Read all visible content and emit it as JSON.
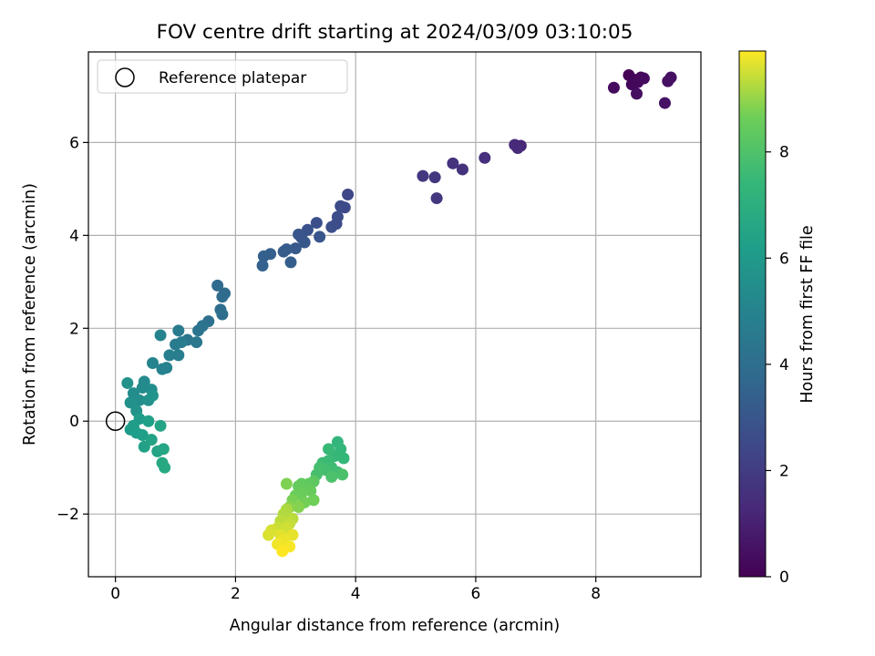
{
  "chart_data": {
    "type": "scatter",
    "title": "FOV centre drift starting at 2024/03/09 03:10:05",
    "xlabel": "Angular distance from reference (arcmin)",
    "ylabel": "Rotation from reference (arcmin)",
    "xlim": [
      -0.45,
      9.75
    ],
    "ylim": [
      -3.35,
      7.95
    ],
    "xticks": [
      0,
      2,
      4,
      6,
      8
    ],
    "yticks": [
      -2,
      0,
      2,
      4,
      6
    ],
    "grid": true,
    "legend": {
      "position": "top-left",
      "entries": [
        "Reference platepar"
      ]
    },
    "colorbar": {
      "label": "Hours from first FF file",
      "colormap": "viridis",
      "range": [
        0,
        9.9
      ],
      "ticks": [
        0,
        2,
        4,
        6,
        8
      ]
    },
    "reference_point": {
      "label": "Reference platepar",
      "x": 0,
      "y": 0
    },
    "point_format": [
      "x (arcmin)",
      "y (arcmin)",
      "hours"
    ],
    "points": [
      [
        8.55,
        7.45,
        0.05
      ],
      [
        8.65,
        7.35,
        0.1
      ],
      [
        8.75,
        7.4,
        0.15
      ],
      [
        8.6,
        7.25,
        0.2
      ],
      [
        8.7,
        7.3,
        0.25
      ],
      [
        8.8,
        7.38,
        0.3
      ],
      [
        8.3,
        7.18,
        0.35
      ],
      [
        8.68,
        7.05,
        0.4
      ],
      [
        9.25,
        7.4,
        0.45
      ],
      [
        9.2,
        7.32,
        0.5
      ],
      [
        9.15,
        6.85,
        0.55
      ],
      [
        6.75,
        5.93,
        1.2
      ],
      [
        6.7,
        5.88,
        1.3
      ],
      [
        6.65,
        5.95,
        1.35
      ],
      [
        6.15,
        5.67,
        1.5
      ],
      [
        5.78,
        5.42,
        1.6
      ],
      [
        5.62,
        5.55,
        1.65
      ],
      [
        5.35,
        4.8,
        1.75
      ],
      [
        5.32,
        5.25,
        1.8
      ],
      [
        5.12,
        5.28,
        1.85
      ],
      [
        3.87,
        4.88,
        2.4
      ],
      [
        3.82,
        4.6,
        2.5
      ],
      [
        3.75,
        4.63,
        2.55
      ],
      [
        3.7,
        4.4,
        2.6
      ],
      [
        3.68,
        4.25,
        2.65
      ],
      [
        3.6,
        4.18,
        2.7
      ],
      [
        3.35,
        4.27,
        2.75
      ],
      [
        3.2,
        4.12,
        2.85
      ],
      [
        3.1,
        3.95,
        2.9
      ],
      [
        3.05,
        4.02,
        2.95
      ],
      [
        3.4,
        3.97,
        3.0
      ],
      [
        3.15,
        3.85,
        3.05
      ],
      [
        3.0,
        3.72,
        3.1
      ],
      [
        2.85,
        3.7,
        3.2
      ],
      [
        2.8,
        3.65,
        3.25
      ],
      [
        2.92,
        3.42,
        3.3
      ],
      [
        2.58,
        3.6,
        3.35
      ],
      [
        2.47,
        3.55,
        3.4
      ],
      [
        2.45,
        3.35,
        3.45
      ],
      [
        1.7,
        2.92,
        3.8
      ],
      [
        1.82,
        2.75,
        3.85
      ],
      [
        1.78,
        2.68,
        3.9
      ],
      [
        1.75,
        2.4,
        4.0
      ],
      [
        1.78,
        2.3,
        4.05
      ],
      [
        1.55,
        2.15,
        4.15
      ],
      [
        1.45,
        2.05,
        4.25
      ],
      [
        1.38,
        1.95,
        4.3
      ],
      [
        1.2,
        1.75,
        4.4
      ],
      [
        1.35,
        1.7,
        4.45
      ],
      [
        1.05,
        1.95,
        4.55
      ],
      [
        1.1,
        1.7,
        4.6
      ],
      [
        1.0,
        1.65,
        4.65
      ],
      [
        1.05,
        1.42,
        4.75
      ],
      [
        0.9,
        1.42,
        4.8
      ],
      [
        0.85,
        1.15,
        4.9
      ],
      [
        0.78,
        1.12,
        4.95
      ],
      [
        0.75,
        1.85,
        5.0
      ],
      [
        0.62,
        1.25,
        5.05
      ],
      [
        0.48,
        0.85,
        5.3
      ],
      [
        0.45,
        0.72,
        5.35
      ],
      [
        0.6,
        0.68,
        5.4
      ],
      [
        0.3,
        0.6,
        5.45
      ],
      [
        0.4,
        0.45,
        5.5
      ],
      [
        0.55,
        0.45,
        5.55
      ],
      [
        0.25,
        0.4,
        5.6
      ],
      [
        0.2,
        0.82,
        5.65
      ],
      [
        0.35,
        0.22,
        5.7
      ],
      [
        0.62,
        0.55,
        5.75
      ],
      [
        0.4,
        0.05,
        6.05
      ],
      [
        0.25,
        -0.18,
        6.1
      ],
      [
        0.3,
        -0.1,
        6.15
      ],
      [
        0.35,
        -0.25,
        6.2
      ],
      [
        0.45,
        -0.3,
        6.25
      ],
      [
        0.55,
        0.0,
        6.3
      ],
      [
        0.48,
        -0.55,
        6.35
      ],
      [
        0.6,
        -0.4,
        6.4
      ],
      [
        0.7,
        -0.65,
        6.45
      ],
      [
        0.75,
        -0.1,
        6.5
      ],
      [
        0.8,
        -0.6,
        6.6
      ],
      [
        0.78,
        -0.9,
        6.7
      ],
      [
        0.82,
        -1.0,
        6.75
      ],
      [
        3.7,
        -0.45,
        7.3
      ],
      [
        3.75,
        -0.6,
        7.35
      ],
      [
        3.8,
        -0.8,
        7.4
      ],
      [
        3.65,
        -0.75,
        7.45
      ],
      [
        3.55,
        -0.6,
        7.5
      ],
      [
        3.55,
        -0.85,
        7.55
      ],
      [
        3.45,
        -0.9,
        7.6
      ],
      [
        3.6,
        -1.0,
        7.65
      ],
      [
        3.7,
        -1.1,
        7.7
      ],
      [
        3.5,
        -1.05,
        7.75
      ],
      [
        3.4,
        -1.0,
        7.8
      ],
      [
        3.35,
        -1.15,
        7.85
      ],
      [
        3.78,
        -1.15,
        7.9
      ],
      [
        3.6,
        -1.2,
        7.95
      ],
      [
        3.3,
        -1.3,
        8.3
      ],
      [
        3.22,
        -1.35,
        8.35
      ],
      [
        3.1,
        -1.35,
        8.4
      ],
      [
        3.05,
        -1.4,
        8.45
      ],
      [
        3.25,
        -1.5,
        8.5
      ],
      [
        3.1,
        -1.55,
        8.55
      ],
      [
        3.0,
        -1.6,
        8.6
      ],
      [
        3.3,
        -1.7,
        8.65
      ],
      [
        3.15,
        -1.75,
        8.7
      ],
      [
        2.95,
        -1.7,
        8.75
      ],
      [
        2.85,
        -1.35,
        8.8
      ],
      [
        3.05,
        -1.85,
        8.85
      ],
      [
        2.9,
        -1.85,
        8.9
      ],
      [
        2.85,
        -1.9,
        9.2
      ],
      [
        2.8,
        -2.0,
        9.25
      ],
      [
        2.95,
        -2.1,
        9.3
      ],
      [
        2.75,
        -2.15,
        9.35
      ],
      [
        2.9,
        -2.2,
        9.4
      ],
      [
        2.7,
        -2.3,
        9.45
      ],
      [
        2.85,
        -2.3,
        9.5
      ],
      [
        2.6,
        -2.35,
        9.55
      ],
      [
        2.55,
        -2.45,
        9.6
      ],
      [
        2.75,
        -2.45,
        9.65
      ],
      [
        2.95,
        -2.45,
        9.7
      ],
      [
        2.8,
        -2.55,
        9.75
      ],
      [
        2.7,
        -2.65,
        9.8
      ],
      [
        2.9,
        -2.7,
        9.85
      ],
      [
        2.78,
        -2.8,
        9.9
      ]
    ]
  }
}
